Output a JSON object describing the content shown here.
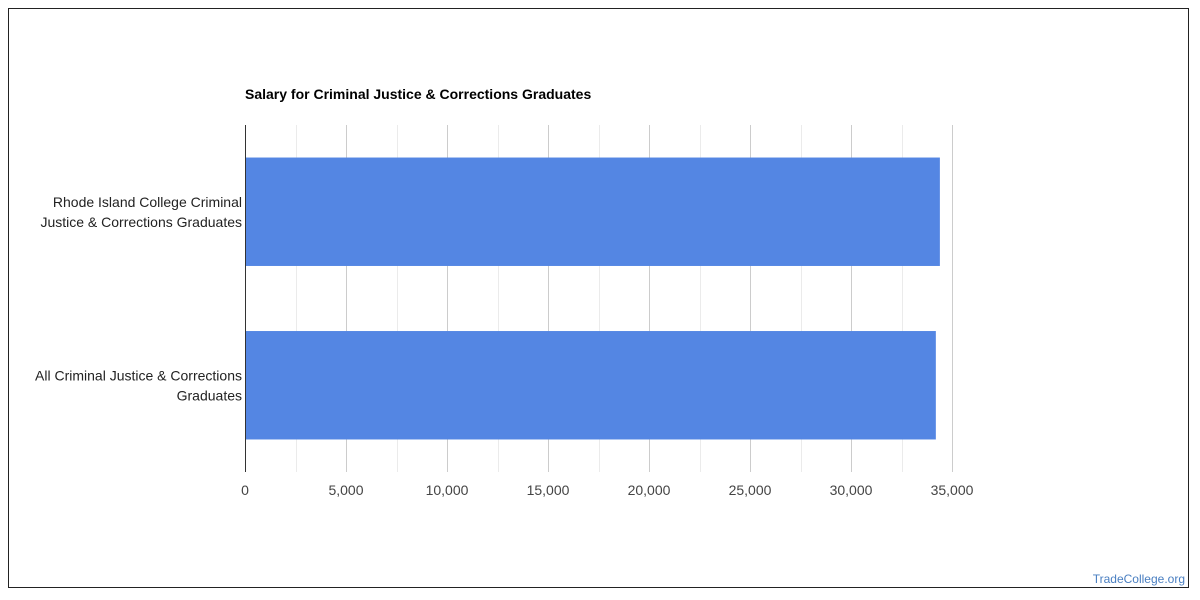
{
  "chart_data": {
    "type": "bar",
    "orientation": "horizontal",
    "title": "Salary for Criminal Justice & Corrections Graduates",
    "categories": [
      [
        "Rhode Island College Criminal",
        "Justice & Corrections Graduates"
      ],
      [
        "All Criminal Justice & Corrections",
        "Graduates"
      ]
    ],
    "values": [
      34400,
      34200
    ],
    "xlim": [
      0,
      35000
    ],
    "x_ticks": [
      0,
      5000,
      10000,
      15000,
      20000,
      25000,
      30000,
      35000
    ],
    "x_tick_labels": [
      "0",
      "5,000",
      "10,000",
      "15,000",
      "20,000",
      "25,000",
      "30,000",
      "35,000"
    ],
    "grid": true,
    "bar_color": "#5486e3"
  },
  "credit": "TradeCollege.org"
}
